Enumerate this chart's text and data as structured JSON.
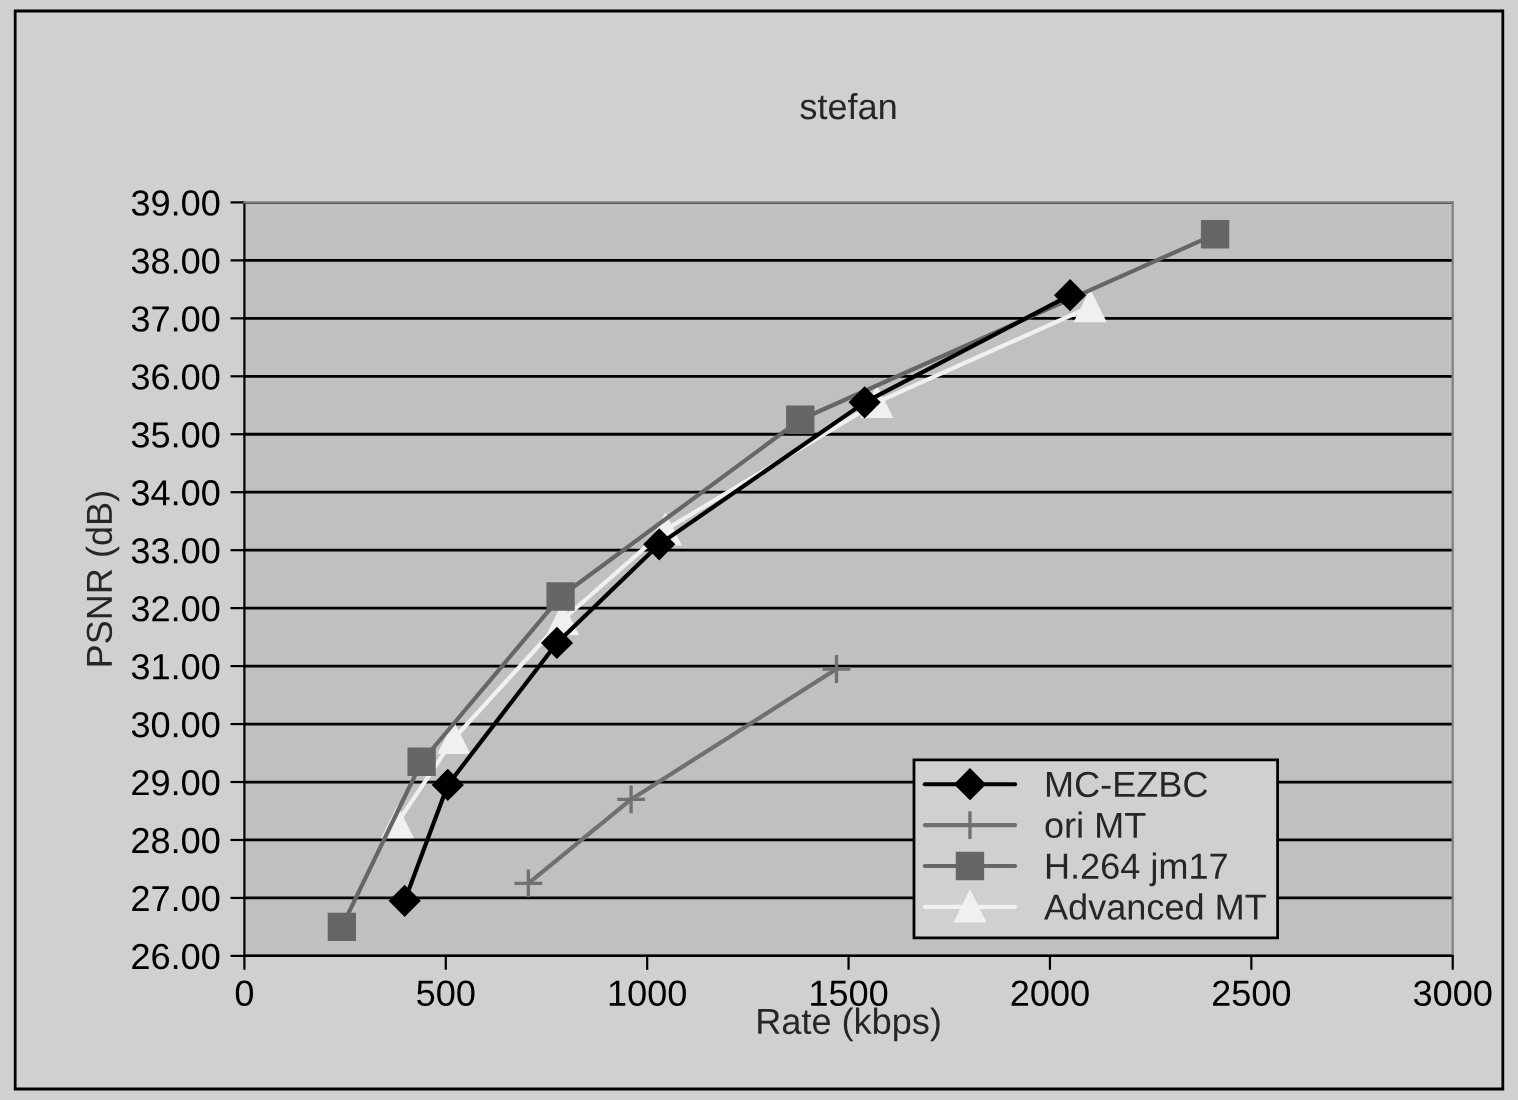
{
  "chart_data": {
    "type": "line",
    "title": "stefan",
    "xlabel": "Rate (kbps)",
    "ylabel": "PSNR (dB)",
    "xlim": [
      0,
      3000
    ],
    "xticks": [
      0,
      500,
      1000,
      1500,
      2000,
      2500,
      3000
    ],
    "ylim": [
      26,
      39
    ],
    "yticks": [
      {
        "value": 26,
        "label": "26.00"
      },
      {
        "value": 27,
        "label": "27.00"
      },
      {
        "value": 28,
        "label": "28.00"
      },
      {
        "value": 29,
        "label": "29.00"
      },
      {
        "value": 30,
        "label": "30.00"
      },
      {
        "value": 31,
        "label": "31.00"
      },
      {
        "value": 32,
        "label": "32.00"
      },
      {
        "value": 33,
        "label": "33.00"
      },
      {
        "value": 34,
        "label": "34.00"
      },
      {
        "value": 35,
        "label": "35.00"
      },
      {
        "value": 36,
        "label": "36.00"
      },
      {
        "value": 37,
        "label": "37.00"
      },
      {
        "value": 38,
        "label": "38.00"
      },
      {
        "value": 39,
        "label": "39.00"
      }
    ],
    "grid": "y",
    "legend": "bottom right",
    "series": [
      {
        "name": "MC-EZBC",
        "color": "#000000",
        "marker": "diamond",
        "x": [
          398,
          505,
          776,
          1030,
          1540,
          2050
        ],
        "values": [
          26.95,
          28.95,
          31.4,
          33.1,
          35.55,
          37.4
        ]
      },
      {
        "name": "ori MT",
        "color": "#707070",
        "marker": "cross",
        "x": [
          705,
          960,
          1470
        ],
        "values": [
          27.25,
          28.7,
          30.95
        ]
      },
      {
        "name": "H.264 jm17",
        "color": "#666666",
        "marker": "square",
        "x": [
          242,
          440,
          785,
          1380,
          2410
        ],
        "values": [
          26.5,
          29.35,
          32.2,
          35.25,
          38.45
        ]
      },
      {
        "name": "Advanced MT",
        "color": "#f0f0f0",
        "marker": "triangle",
        "x": [
          380,
          520,
          790,
          1045,
          1570,
          2100
        ],
        "values": [
          28.3,
          29.75,
          31.8,
          33.35,
          35.55,
          37.2
        ]
      }
    ]
  }
}
